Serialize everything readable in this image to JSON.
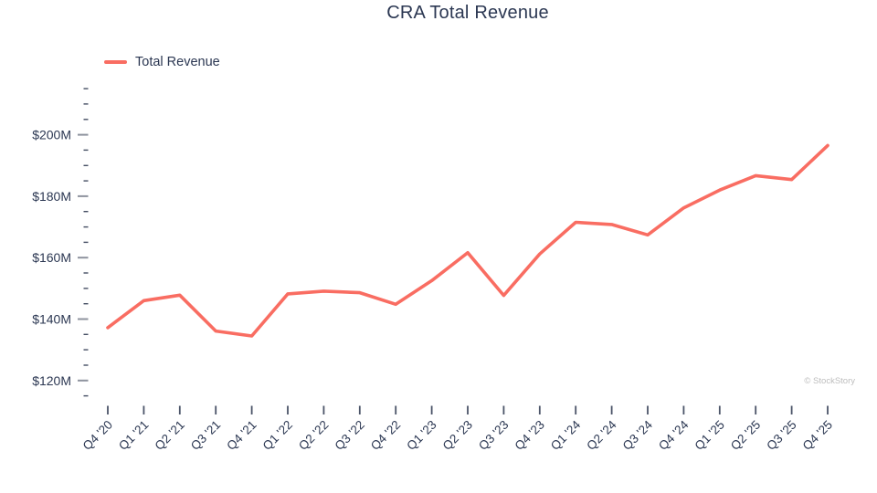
{
  "chart_data": {
    "type": "line",
    "title": "CRA Total Revenue",
    "legend_position": "top-left",
    "grid": "off",
    "categories": [
      "Q4 '20",
      "Q1 '21",
      "Q2 '21",
      "Q3 '21",
      "Q4 '21",
      "Q1 '22",
      "Q2 '22",
      "Q3 '22",
      "Q4 '22",
      "Q1 '23",
      "Q2 '23",
      "Q3 '23",
      "Q4 '23",
      "Q1 '24",
      "Q2 '24",
      "Q3 '24",
      "Q4 '24",
      "Q1 '25",
      "Q2 '25",
      "Q3 '25",
      "Q4 '25"
    ],
    "series": [
      {
        "name": "Total Revenue",
        "color": "#f96d62",
        "values": [
          137.2,
          146.0,
          147.8,
          136.1,
          134.5,
          148.2,
          149.1,
          148.6,
          144.8,
          152.5,
          161.6,
          147.7,
          161.2,
          171.5,
          170.8,
          167.4,
          176.2,
          182.0,
          186.7,
          185.4,
          196.5
        ]
      }
    ],
    "xlabel": "",
    "ylabel": "",
    "y_axis": {
      "unit_prefix": "$",
      "unit_suffix": "M",
      "range": [
        115,
        215
      ],
      "minor_step": 5,
      "major_ticks": [
        200,
        180,
        160,
        140,
        120
      ],
      "tick_labels": [
        "$200M",
        "$180M",
        "$160M",
        "$140M",
        "$120M"
      ]
    }
  },
  "attribution": "© StockStory",
  "colors": {
    "text": "#2b3752",
    "tick_minor": "#454e63",
    "tick_x": "#4b5468",
    "tick_major_y": "#8e939e",
    "attribution": "#bdbdbd"
  }
}
